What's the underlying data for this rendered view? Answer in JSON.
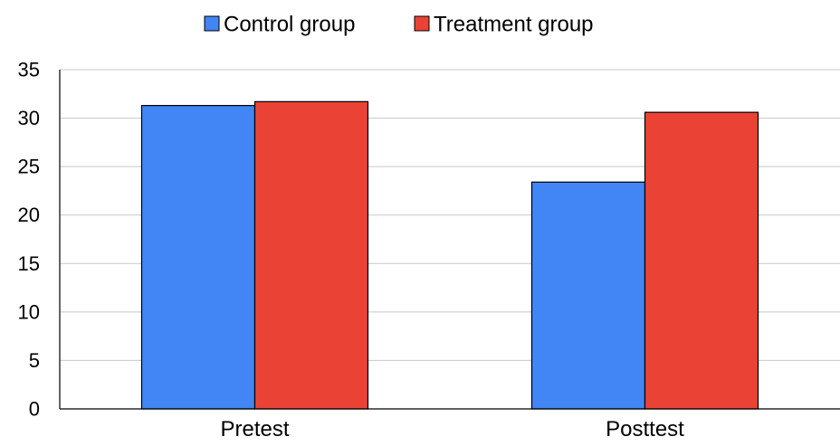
{
  "chart_data": {
    "type": "bar",
    "categories": [
      "Pretest",
      "Posttest"
    ],
    "series": [
      {
        "name": "Control group",
        "values": [
          31.3,
          23.4
        ],
        "color": "#4285f4"
      },
      {
        "name": "Treatment group",
        "values": [
          31.7,
          30.6
        ],
        "color": "#ea4335"
      }
    ],
    "ylim": [
      0,
      35
    ],
    "yticks": [
      0,
      5,
      10,
      15,
      20,
      25,
      30,
      35
    ],
    "grid": true,
    "legend_position": "top-center"
  }
}
